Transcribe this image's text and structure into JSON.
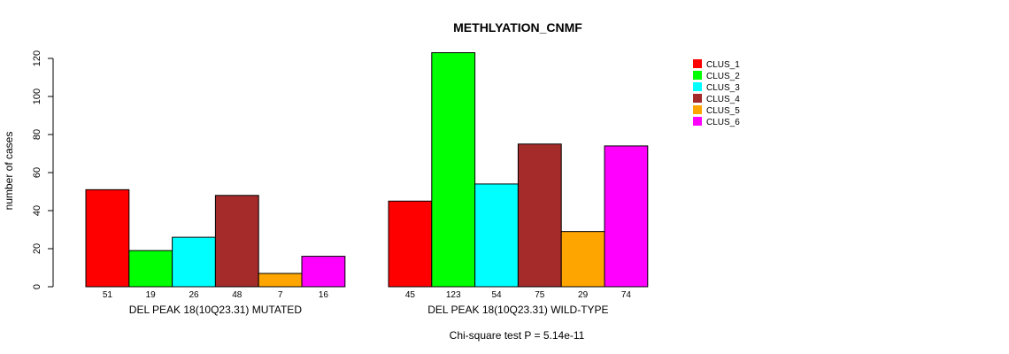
{
  "chart_data": {
    "type": "bar",
    "title": "METHLYATION_CNMF",
    "ylabel": "number of cases",
    "ylim": [
      0,
      120
    ],
    "yticks": [
      0,
      20,
      40,
      60,
      80,
      100,
      120
    ],
    "groups": [
      {
        "label": "DEL PEAK 18(10Q23.31) MUTATED",
        "values": [
          51,
          19,
          26,
          48,
          7,
          16
        ]
      },
      {
        "label": "DEL PEAK 18(10Q23.31) WILD-TYPE",
        "values": [
          45,
          123,
          54,
          75,
          29,
          74
        ]
      }
    ],
    "series": [
      {
        "name": "CLUS_1",
        "color": "#ff0000"
      },
      {
        "name": "CLUS_2",
        "color": "#00ff00"
      },
      {
        "name": "CLUS_3",
        "color": "#00ffff"
      },
      {
        "name": "CLUS_4",
        "color": "#a52a2a"
      },
      {
        "name": "CLUS_5",
        "color": "#ffa500"
      },
      {
        "name": "CLUS_6",
        "color": "#ff00ff"
      }
    ],
    "legend_position": "top-right",
    "grid": false,
    "footnote": "Chi-square test P = 5.14e-11"
  }
}
